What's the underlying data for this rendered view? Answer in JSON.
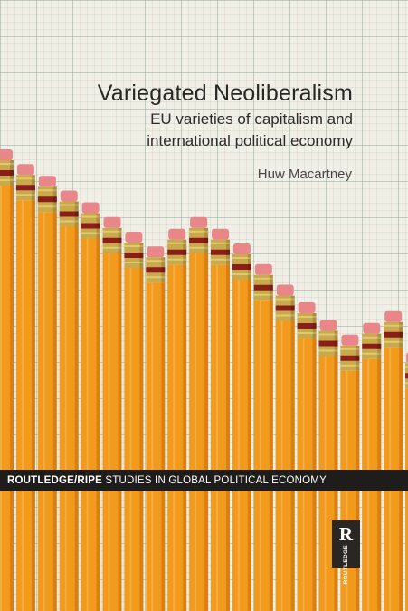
{
  "book": {
    "title": "Variegated Neoliberalism",
    "subtitle_line1": "EU varieties of capitalism and",
    "subtitle_line2": "international political economy",
    "author": "Huw Macartney",
    "series_bold": "ROUTLEDGE/RIPE",
    "series_rest": " STUDIES IN GLOBAL POLITICAL ECONOMY",
    "publisher_mark": "R",
    "publisher": "ROUTLEDGE"
  },
  "chart_data": {
    "type": "bar",
    "values": [
      100,
      95,
      91,
      86,
      82,
      77,
      72,
      67,
      73,
      77,
      73,
      68,
      61,
      54,
      48,
      42,
      37,
      41,
      45,
      31,
      39,
      29,
      22,
      17,
      13,
      9
    ]
  },
  "colors": {
    "pencil_body": "#f29a1c",
    "pencil_shade": "#c86a08",
    "ferrule": "#c9a94a",
    "ferrule_band": "#8a1f1a",
    "eraser": "#e8868a",
    "grid_paper": "#f1efe6",
    "series_band": "#1f1d1c"
  }
}
